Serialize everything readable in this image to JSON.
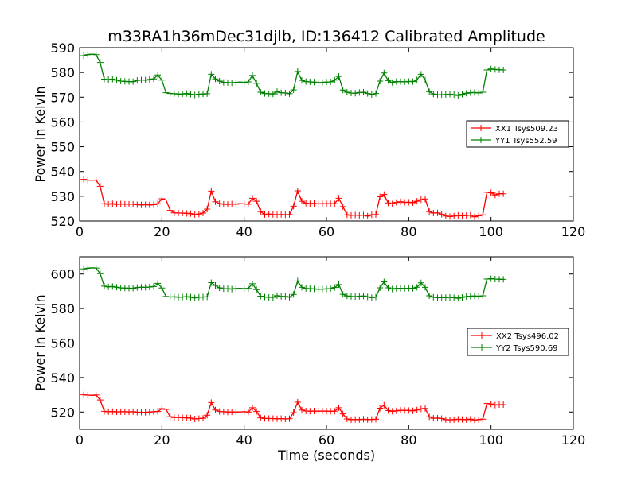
{
  "chart_data": [
    {
      "type": "line",
      "title": "m33RA1h36mDec31djlb, ID:136412 Calibrated Amplitude",
      "xlabel": "",
      "ylabel": "Power in Kelvin",
      "xlim": [
        0,
        120
      ],
      "ylim": [
        520,
        590
      ],
      "xticks": [
        0,
        20,
        40,
        60,
        80,
        100,
        120
      ],
      "yticks": [
        520,
        530,
        540,
        550,
        560,
        570,
        580,
        590
      ],
      "grid": false,
      "legend_position": "center-right",
      "x": [
        1,
        2,
        3,
        4,
        5,
        6,
        7,
        8,
        9,
        10,
        11,
        12,
        13,
        14,
        15,
        16,
        17,
        18,
        19,
        20,
        21,
        22,
        23,
        24,
        25,
        26,
        27,
        28,
        29,
        30,
        31,
        32,
        33,
        34,
        35,
        36,
        37,
        38,
        39,
        40,
        41,
        42,
        43,
        44,
        45,
        46,
        47,
        48,
        49,
        50,
        51,
        52,
        53,
        54,
        55,
        56,
        57,
        58,
        59,
        60,
        61,
        62,
        63,
        64,
        65,
        66,
        67,
        68,
        69,
        70,
        71,
        72,
        73,
        74,
        75,
        76,
        77,
        78,
        79,
        80,
        81,
        82,
        83,
        84,
        85,
        86,
        87,
        88,
        89,
        90,
        91,
        92,
        93,
        94,
        95,
        96,
        97,
        98,
        99,
        100,
        101,
        102,
        103
      ],
      "series": [
        {
          "name": "XX1 Tsys509.23",
          "color": "#ff0000",
          "values": [
            536.8,
            536.5,
            536.5,
            536.5,
            534.0,
            527.0,
            526.8,
            527.0,
            526.7,
            526.9,
            526.8,
            526.8,
            526.8,
            526.6,
            526.5,
            526.6,
            526.5,
            526.6,
            527.0,
            529.0,
            528.5,
            524.3,
            523.3,
            523.2,
            523.2,
            523.1,
            523.0,
            522.6,
            522.8,
            523.2,
            524.8,
            532.1,
            527.8,
            527.0,
            526.8,
            526.7,
            526.9,
            526.8,
            527.0,
            526.9,
            526.8,
            529.2,
            528.0,
            523.8,
            522.6,
            522.8,
            522.6,
            522.5,
            522.6,
            522.5,
            522.6,
            526.0,
            532.2,
            528.0,
            527.2,
            527.0,
            527.1,
            526.9,
            527.0,
            527.0,
            527.0,
            527.0,
            529.2,
            525.8,
            522.5,
            522.3,
            522.4,
            522.3,
            522.4,
            522.0,
            522.5,
            522.6,
            529.8,
            530.7,
            527.3,
            526.9,
            527.5,
            527.8,
            527.5,
            527.6,
            527.4,
            528.0,
            528.6,
            528.9,
            523.8,
            523.2,
            523.3,
            522.7,
            522.0,
            521.8,
            522.0,
            522.3,
            522.1,
            522.2,
            522.4,
            521.7,
            522.1,
            522.5,
            531.6,
            531.4,
            530.5,
            531.0,
            531.0
          ]
        },
        {
          "name": "YY1 Tsys552.59",
          "color": "#008000",
          "values": [
            586.8,
            587.2,
            587.4,
            587.2,
            584.0,
            577.3,
            577.1,
            577.3,
            576.9,
            576.5,
            576.4,
            576.3,
            576.3,
            576.8,
            577.0,
            576.9,
            577.2,
            577.4,
            579.0,
            576.9,
            571.8,
            571.5,
            571.4,
            571.3,
            571.3,
            571.5,
            571.2,
            570.9,
            571.2,
            571.3,
            571.4,
            579.3,
            577.4,
            576.5,
            576.0,
            575.9,
            575.8,
            576.0,
            576.1,
            576.0,
            576.2,
            578.8,
            575.6,
            572.0,
            571.5,
            571.4,
            571.3,
            572.3,
            571.8,
            571.7,
            571.4,
            573.0,
            580.4,
            576.8,
            576.3,
            576.2,
            576.1,
            575.9,
            576.0,
            576.1,
            576.2,
            576.9,
            578.4,
            572.9,
            572.0,
            571.7,
            571.6,
            571.9,
            572.0,
            571.5,
            571.1,
            571.5,
            576.5,
            579.8,
            576.7,
            575.9,
            576.3,
            576.3,
            576.2,
            576.4,
            576.3,
            577.0,
            579.3,
            577.0,
            572.2,
            571.3,
            571.0,
            571.0,
            571.1,
            571.2,
            571.0,
            570.7,
            571.2,
            571.6,
            571.8,
            571.9,
            571.7,
            572.0,
            581.0,
            581.4,
            581.2,
            581.1,
            581.0
          ]
        }
      ]
    },
    {
      "type": "line",
      "title": "",
      "xlabel": "Time (seconds)",
      "ylabel": "Power in Kelvin",
      "xlim": [
        0,
        120
      ],
      "ylim": [
        510,
        610
      ],
      "xticks": [
        0,
        20,
        40,
        60,
        80,
        100,
        120
      ],
      "yticks": [
        520,
        540,
        560,
        580,
        600
      ],
      "grid": false,
      "legend_position": "center-right",
      "x": [
        1,
        2,
        3,
        4,
        5,
        6,
        7,
        8,
        9,
        10,
        11,
        12,
        13,
        14,
        15,
        16,
        17,
        18,
        19,
        20,
        21,
        22,
        23,
        24,
        25,
        26,
        27,
        28,
        29,
        30,
        31,
        32,
        33,
        34,
        35,
        36,
        37,
        38,
        39,
        40,
        41,
        42,
        43,
        44,
        45,
        46,
        47,
        48,
        49,
        50,
        51,
        52,
        53,
        54,
        55,
        56,
        57,
        58,
        59,
        60,
        61,
        62,
        63,
        64,
        65,
        66,
        67,
        68,
        69,
        70,
        71,
        72,
        73,
        74,
        75,
        76,
        77,
        78,
        79,
        80,
        81,
        82,
        83,
        84,
        85,
        86,
        87,
        88,
        89,
        90,
        91,
        92,
        93,
        94,
        95,
        96,
        97,
        98,
        99,
        100,
        101,
        102,
        103
      ],
      "series": [
        {
          "name": "XX2 Tsys496.02",
          "color": "#ff0000",
          "values": [
            530.0,
            529.8,
            529.7,
            529.9,
            527.0,
            520.4,
            520.2,
            520.3,
            520.1,
            520.2,
            520.2,
            520.1,
            520.2,
            519.9,
            519.9,
            519.8,
            520.0,
            520.2,
            520.3,
            522.0,
            521.5,
            517.3,
            516.8,
            516.9,
            516.7,
            516.6,
            516.5,
            516.0,
            516.2,
            516.4,
            518.2,
            525.5,
            521.2,
            520.3,
            520.2,
            520.0,
            520.1,
            520.0,
            520.1,
            520.2,
            520.0,
            522.5,
            520.3,
            516.6,
            516.3,
            516.2,
            516.2,
            516.1,
            516.2,
            516.0,
            516.1,
            519.7,
            525.7,
            521.2,
            520.6,
            520.5,
            520.6,
            520.5,
            520.6,
            520.5,
            520.4,
            520.5,
            522.5,
            518.9,
            516.0,
            515.6,
            515.7,
            515.6,
            515.8,
            515.6,
            515.7,
            515.8,
            522.2,
            524.0,
            520.9,
            520.4,
            520.7,
            521.0,
            520.9,
            520.9,
            520.7,
            521.2,
            521.8,
            522.1,
            517.2,
            516.4,
            516.5,
            516.2,
            515.6,
            515.5,
            515.6,
            515.8,
            515.7,
            515.6,
            515.9,
            515.4,
            515.6,
            515.9,
            524.9,
            524.7,
            524.0,
            524.3,
            524.3
          ]
        },
        {
          "name": "YY2 Tsys590.69",
          "color": "#008000",
          "values": [
            603.0,
            603.4,
            603.6,
            603.5,
            600.2,
            593.0,
            592.6,
            592.8,
            592.4,
            592.0,
            591.9,
            591.8,
            591.8,
            592.2,
            592.4,
            592.3,
            592.5,
            592.8,
            594.6,
            591.9,
            587.0,
            586.7,
            586.8,
            586.6,
            586.7,
            586.9,
            586.6,
            586.2,
            586.6,
            586.7,
            586.8,
            595.0,
            593.4,
            592.0,
            591.5,
            591.5,
            591.3,
            591.6,
            591.7,
            591.5,
            591.7,
            594.4,
            591.0,
            587.2,
            586.7,
            586.5,
            586.5,
            587.5,
            587.0,
            587.0,
            586.6,
            588.2,
            596.0,
            592.3,
            591.6,
            591.5,
            591.4,
            591.2,
            591.3,
            591.4,
            591.5,
            592.2,
            593.9,
            588.3,
            587.3,
            587.0,
            586.9,
            587.1,
            587.3,
            586.8,
            586.3,
            586.7,
            592.0,
            595.5,
            592.0,
            591.3,
            591.7,
            591.7,
            591.6,
            591.8,
            591.7,
            592.4,
            594.9,
            592.3,
            587.4,
            586.6,
            586.3,
            586.3,
            586.4,
            586.5,
            586.3,
            586.0,
            586.5,
            586.9,
            587.2,
            587.3,
            587.1,
            587.4,
            597.1,
            597.3,
            597.1,
            597.0,
            596.9
          ]
        }
      ]
    }
  ]
}
